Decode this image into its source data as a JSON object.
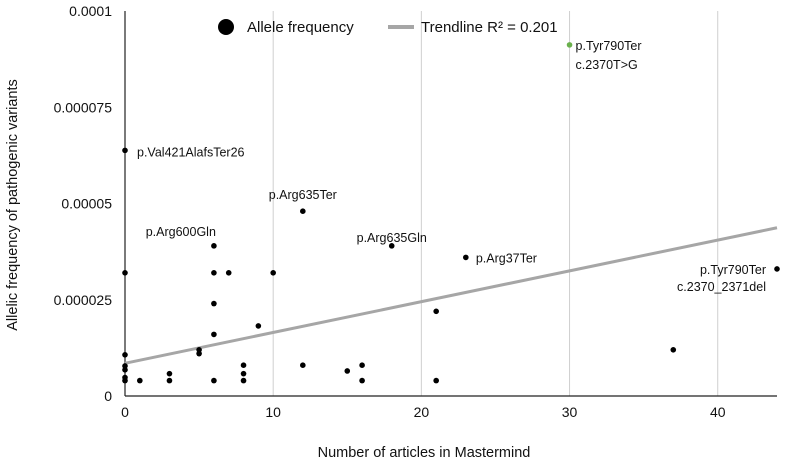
{
  "chart_data": {
    "type": "scatter",
    "xlabel": "Number of articles in Mastermind",
    "ylabel": "Allelic frequency of pathogenic variants",
    "xlim": [
      0,
      44
    ],
    "ylim": [
      0,
      0.0001
    ],
    "x_ticks": [
      0,
      10,
      20,
      30,
      40
    ],
    "y_ticks": [
      0,
      2.5e-05,
      5e-05,
      7.5e-05,
      0.0001
    ],
    "y_tick_labels": [
      "0",
      "0.000025",
      "0.00005",
      "0.000075",
      "0.0001"
    ],
    "grid": "vertical",
    "legend_position": "top",
    "legend": [
      {
        "label": "Allele frequency",
        "marker": "dot",
        "color": "#000000"
      },
      {
        "label": "Trendline R² = 0.201",
        "marker": "line",
        "color": "#a6a6a6"
      }
    ],
    "series": [
      {
        "name": "Allele frequency",
        "color": "#000000",
        "points": [
          {
            "x": 0,
            "y": 6.38e-05
          },
          {
            "x": 0,
            "y": 3.2e-05
          },
          {
            "x": 0,
            "y": 1.07e-05
          },
          {
            "x": 0,
            "y": 7.8e-06
          },
          {
            "x": 0,
            "y": 6.8e-06
          },
          {
            "x": 0,
            "y": 4.8e-06
          },
          {
            "x": 0,
            "y": 4e-06
          },
          {
            "x": 1,
            "y": 4e-06
          },
          {
            "x": 3,
            "y": 5.8e-06
          },
          {
            "x": 3,
            "y": 4e-06
          },
          {
            "x": 5,
            "y": 1.2e-05
          },
          {
            "x": 5,
            "y": 1.1e-05
          },
          {
            "x": 6,
            "y": 3.9e-05
          },
          {
            "x": 6,
            "y": 3.2e-05
          },
          {
            "x": 6,
            "y": 2.4e-05
          },
          {
            "x": 6,
            "y": 1.6e-05
          },
          {
            "x": 6,
            "y": 4e-06
          },
          {
            "x": 7,
            "y": 3.2e-05
          },
          {
            "x": 8,
            "y": 8e-06
          },
          {
            "x": 8,
            "y": 5.8e-06
          },
          {
            "x": 8,
            "y": 4e-06
          },
          {
            "x": 9,
            "y": 1.82e-05
          },
          {
            "x": 10,
            "y": 3.2e-05
          },
          {
            "x": 12,
            "y": 4.8e-05
          },
          {
            "x": 12,
            "y": 8e-06
          },
          {
            "x": 15,
            "y": 6.5e-06
          },
          {
            "x": 16,
            "y": 8e-06
          },
          {
            "x": 16,
            "y": 4e-06
          },
          {
            "x": 18,
            "y": 3.9e-05
          },
          {
            "x": 21,
            "y": 2.2e-05
          },
          {
            "x": 21,
            "y": 4e-06
          },
          {
            "x": 23,
            "y": 3.6e-05
          },
          {
            "x": 30,
            "y": 9.12e-05,
            "color": "#6ab04c"
          },
          {
            "x": 37,
            "y": 1.2e-05
          },
          {
            "x": 44,
            "y": 3.3e-05
          }
        ]
      }
    ],
    "trendline": {
      "x_start": 0,
      "y_start": 8.5e-06,
      "x_end": 44,
      "y_end": 4.37e-05,
      "r2": 0.201,
      "color": "#a6a6a6"
    },
    "annotations": [
      {
        "text": "p.Val421AlafsTer26",
        "x": 0,
        "y": 6.38e-05,
        "color": "#111111"
      },
      {
        "text": "p.Arg635Ter",
        "x": 12,
        "y": 4.8e-05,
        "color": "#111111"
      },
      {
        "text": "p.Arg600Gln",
        "x": 6,
        "y": 3.9e-05,
        "color": "#111111"
      },
      {
        "text": "p.Arg635Gln",
        "x": 18,
        "y": 3.9e-05,
        "color": "#111111"
      },
      {
        "text": "p.Arg37Ter",
        "x": 23,
        "y": 3.6e-05,
        "color": "#111111"
      },
      {
        "text": "p.Tyr790Ter",
        "x": 30,
        "y": 9.12e-05,
        "color": "#555555"
      },
      {
        "text": "c.2370T>G",
        "x": 30,
        "y": 9.12e-05,
        "color": "#555555"
      },
      {
        "text": "p.Tyr790Ter",
        "x": 44,
        "y": 3.3e-05,
        "color": "#555555"
      },
      {
        "text": "c.2370_2371del",
        "x": 44,
        "y": 3.3e-05,
        "color": "#555555"
      }
    ]
  }
}
